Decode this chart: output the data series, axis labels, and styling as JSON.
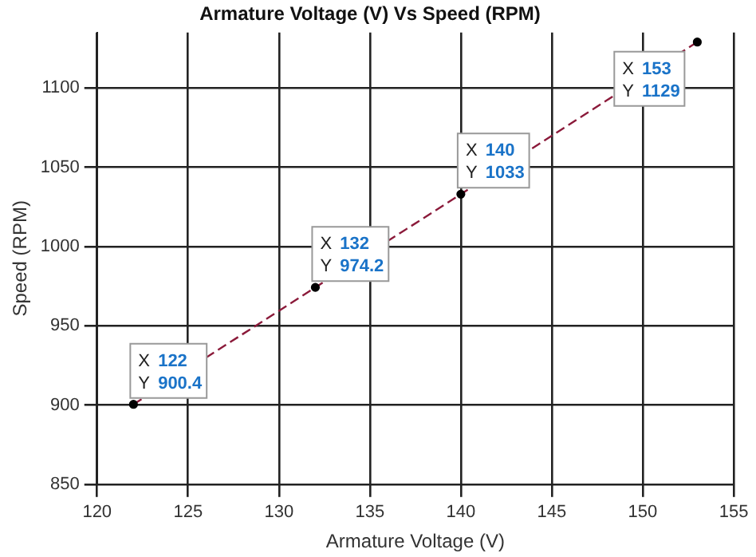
{
  "chart_data": {
    "type": "line",
    "title": "Armature Voltage (V) Vs Speed (RPM)",
    "xlabel": "Armature Voltage (V)",
    "ylabel": "Speed (RPM)",
    "x": [
      122,
      132,
      140,
      153
    ],
    "series": [
      {
        "color": "#8b1a3a",
        "values": [
          900.4,
          974.2,
          1033,
          1129
        ]
      }
    ],
    "xlim": [
      120,
      155
    ],
    "xticks": [
      120,
      125,
      130,
      135,
      140,
      145,
      150,
      155
    ],
    "ylim": [
      850,
      1135
    ],
    "yticks": [
      850,
      900,
      950,
      1000,
      1050,
      1100
    ],
    "grid": true,
    "legend": false,
    "marker": "circle",
    "line_style": "dashed",
    "annotations": [
      {
        "text": "X 122\nY 900.4",
        "x": 122,
        "y": 900.4
      },
      {
        "text": "X 132\nY 974.2",
        "x": 132,
        "y": 974.2
      },
      {
        "text": "X 140\nY 1033",
        "x": 140,
        "y": 1033
      },
      {
        "text": "X 153\nY 1129",
        "x": 153,
        "y": 1129
      }
    ]
  }
}
